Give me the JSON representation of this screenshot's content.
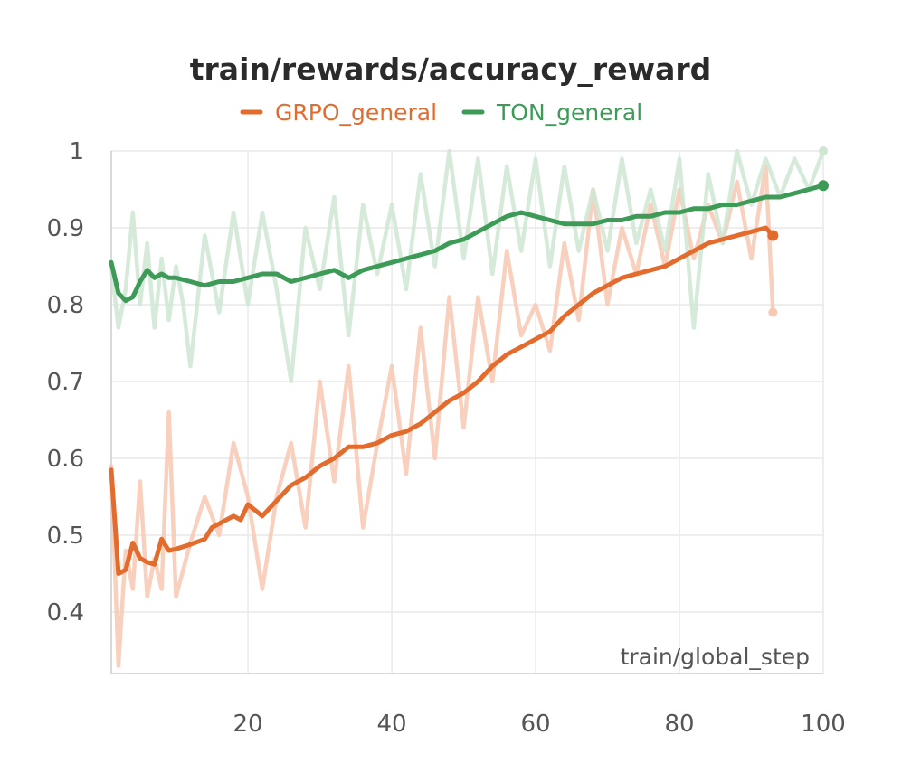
{
  "chart_data": {
    "type": "line",
    "title": "train/rewards/accuracy_reward",
    "xlabel": "train/global_step",
    "ylabel": "",
    "xlim": [
      1,
      100
    ],
    "ylim": [
      0.32,
      1.0
    ],
    "xticks": [
      20,
      40,
      60,
      80,
      100
    ],
    "xtick_labels": [
      "20",
      "40",
      "60",
      "80",
      "100"
    ],
    "yticks": [
      0.4,
      0.5,
      0.6,
      0.7,
      0.8,
      0.9,
      1.0
    ],
    "ytick_labels": [
      "0.4",
      "0.5",
      "0.6",
      "0.7",
      "0.8",
      "0.9",
      "1"
    ],
    "grid": true,
    "legend_position": "top-center",
    "series": [
      {
        "name": "GRPO_general",
        "color": "#e26b2e",
        "raw_color": "#f7c8b2",
        "raw": {
          "x": [
            1,
            2,
            3,
            4,
            5,
            6,
            7,
            8,
            9,
            10,
            12,
            14,
            16,
            18,
            20,
            22,
            24,
            26,
            28,
            30,
            32,
            34,
            36,
            38,
            40,
            42,
            44,
            46,
            48,
            50,
            52,
            54,
            56,
            58,
            60,
            62,
            64,
            66,
            68,
            70,
            72,
            74,
            76,
            78,
            80,
            82,
            84,
            86,
            88,
            90,
            92,
            93
          ],
          "y": [
            0.59,
            0.33,
            0.48,
            0.43,
            0.57,
            0.42,
            0.47,
            0.43,
            0.66,
            0.42,
            0.49,
            0.55,
            0.5,
            0.62,
            0.55,
            0.43,
            0.55,
            0.62,
            0.51,
            0.7,
            0.57,
            0.72,
            0.51,
            0.62,
            0.72,
            0.58,
            0.77,
            0.6,
            0.81,
            0.64,
            0.81,
            0.7,
            0.87,
            0.76,
            0.8,
            0.74,
            0.88,
            0.78,
            0.95,
            0.8,
            0.9,
            0.84,
            0.93,
            0.85,
            0.95,
            0.86,
            0.93,
            0.88,
            0.96,
            0.86,
            0.98,
            0.79
          ]
        },
        "smoothed": {
          "x": [
            1,
            2,
            3,
            4,
            5,
            6,
            7,
            8,
            9,
            10,
            12,
            14,
            15,
            16,
            18,
            19,
            20,
            22,
            24,
            26,
            28,
            30,
            32,
            34,
            36,
            38,
            40,
            42,
            44,
            46,
            48,
            50,
            52,
            54,
            56,
            58,
            60,
            62,
            64,
            66,
            68,
            70,
            72,
            74,
            76,
            78,
            80,
            82,
            84,
            86,
            88,
            90,
            92,
            93
          ],
          "y": [
            0.585,
            0.45,
            0.455,
            0.49,
            0.47,
            0.465,
            0.462,
            0.495,
            0.48,
            0.482,
            0.488,
            0.495,
            0.51,
            0.515,
            0.525,
            0.52,
            0.54,
            0.525,
            0.545,
            0.565,
            0.575,
            0.59,
            0.6,
            0.615,
            0.615,
            0.62,
            0.63,
            0.635,
            0.645,
            0.66,
            0.675,
            0.685,
            0.7,
            0.72,
            0.735,
            0.745,
            0.755,
            0.765,
            0.785,
            0.8,
            0.815,
            0.825,
            0.835,
            0.84,
            0.845,
            0.85,
            0.86,
            0.87,
            0.88,
            0.885,
            0.89,
            0.895,
            0.9,
            0.89
          ]
        }
      },
      {
        "name": "TON_general",
        "color": "#3d9a57",
        "raw_color": "#cfe6d3",
        "raw": {
          "x": [
            1,
            2,
            3,
            4,
            5,
            6,
            7,
            8,
            9,
            10,
            11,
            12,
            14,
            16,
            18,
            20,
            22,
            24,
            26,
            28,
            30,
            32,
            34,
            36,
            38,
            40,
            42,
            44,
            46,
            48,
            50,
            52,
            54,
            56,
            58,
            60,
            62,
            64,
            66,
            68,
            70,
            72,
            74,
            76,
            78,
            80,
            82,
            84,
            86,
            88,
            90,
            92,
            94,
            96,
            98,
            100
          ],
          "y": [
            0.85,
            0.77,
            0.82,
            0.92,
            0.8,
            0.88,
            0.77,
            0.86,
            0.78,
            0.85,
            0.8,
            0.72,
            0.89,
            0.79,
            0.92,
            0.8,
            0.92,
            0.82,
            0.7,
            0.9,
            0.82,
            0.94,
            0.76,
            0.93,
            0.84,
            0.93,
            0.82,
            0.97,
            0.85,
            1.0,
            0.86,
            0.99,
            0.84,
            0.98,
            0.87,
            0.99,
            0.85,
            0.98,
            0.87,
            0.95,
            0.87,
            0.99,
            0.88,
            0.95,
            0.87,
            0.99,
            0.77,
            0.97,
            0.88,
            1.0,
            0.93,
            0.99,
            0.94,
            0.99,
            0.95,
            1.0
          ]
        },
        "smoothed": {
          "x": [
            1,
            2,
            3,
            4,
            5,
            6,
            7,
            8,
            9,
            10,
            12,
            14,
            16,
            18,
            20,
            22,
            24,
            26,
            28,
            30,
            32,
            34,
            36,
            38,
            40,
            42,
            44,
            46,
            48,
            50,
            52,
            54,
            56,
            58,
            60,
            62,
            64,
            66,
            68,
            70,
            72,
            74,
            76,
            78,
            80,
            82,
            84,
            86,
            88,
            90,
            92,
            94,
            96,
            98,
            100
          ],
          "y": [
            0.855,
            0.815,
            0.805,
            0.81,
            0.83,
            0.845,
            0.835,
            0.84,
            0.835,
            0.835,
            0.83,
            0.825,
            0.83,
            0.83,
            0.835,
            0.84,
            0.84,
            0.83,
            0.835,
            0.84,
            0.845,
            0.835,
            0.845,
            0.85,
            0.855,
            0.86,
            0.865,
            0.87,
            0.88,
            0.885,
            0.895,
            0.905,
            0.915,
            0.92,
            0.915,
            0.91,
            0.905,
            0.905,
            0.905,
            0.91,
            0.91,
            0.915,
            0.915,
            0.92,
            0.92,
            0.925,
            0.925,
            0.93,
            0.93,
            0.935,
            0.94,
            0.94,
            0.945,
            0.95,
            0.955
          ]
        }
      }
    ]
  }
}
